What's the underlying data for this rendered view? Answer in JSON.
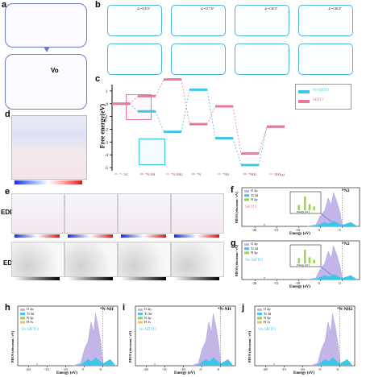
{
  "panels": {
    "a": "a",
    "b": "b",
    "c": "c",
    "d": "d",
    "e": "e",
    "f": "f",
    "g": "g",
    "h": "h",
    "i": "i",
    "j": "j"
  },
  "panel_a": {
    "vacancy_label": "Vo"
  },
  "panel_b": {
    "angle_labels": [
      "∠=116.5°",
      "∠=117.6°",
      "∠=136.5°",
      "∠=140.4°"
    ]
  },
  "panel_c": {
    "ylabel": "Free energy(eV)",
    "legend": [
      {
        "name": "Vo-SBTO",
        "color": "#3ec6e8"
      },
      {
        "name": "SBTO",
        "color": "#e9779e"
      }
    ],
    "steps": [
      "* - N2",
      "*N-NH",
      "*N-NH2",
      "*N",
      "*NH",
      "*NH2",
      "NH3(g)"
    ],
    "y_ticks": [
      "1",
      "0",
      "-1",
      "-2",
      "-3",
      "-4",
      "-5"
    ]
  },
  "panel_e": {
    "row_labels": [
      "EDD",
      "ED"
    ]
  },
  "pdos_common": {
    "ylabel": "PDOS (electrons / eV)",
    "xlabel": "Energy (eV)",
    "x_ticks": [
      "-20",
      "-15",
      "-10",
      "-5",
      "0"
    ],
    "colors": {
      "O2p": "#c4b5e8",
      "Ti3d": "#3ec6e8",
      "N2p": "#9ad04a",
      "H1s": "#f2c060"
    }
  },
  "panel_f": {
    "adsorbate": "*N2",
    "sample": "SBTO",
    "sample_color": "#e9779e",
    "legend": [
      "O 2p",
      "Ti 3d",
      "N 2p"
    ],
    "inset_xlabel": "Energy (eV)"
  },
  "panel_g": {
    "adsorbate": "*N2",
    "sample": "Vo-SBTO",
    "sample_color": "#3ec6e8",
    "legend": [
      "O 2p",
      "Ti 3d",
      "N 2p"
    ],
    "inset_xlabel": "Energy (eV)"
  },
  "panel_h": {
    "adsorbate": "*N-NH",
    "sample": "Vo-SBTO",
    "sample_color": "#3ec6e8",
    "legend": [
      "O 2p",
      "Ti 3d",
      "N 2p",
      "H 1s"
    ]
  },
  "panel_i": {
    "adsorbate": "*N-NH",
    "sample": "Vo-SBTO",
    "sample_color": "#3ec6e8",
    "legend": [
      "O 2p",
      "Ti 3d",
      "N 2p",
      "H 1s"
    ]
  },
  "panel_j": {
    "adsorbate": "*N-NH2",
    "sample": "Vo-SBTO",
    "sample_color": "#3ec6e8",
    "legend": [
      "O 2p",
      "Ti 3d",
      "N 2p",
      "H 1s"
    ]
  },
  "chart_data": [
    {
      "type": "line",
      "title": "",
      "ylabel": "Free energy(eV)",
      "categories": [
        "* - N2",
        "*N-NH",
        "*N-NH2",
        "*N",
        "*NH",
        "*NH2",
        "NH3(g)"
      ],
      "ylim": [
        -5,
        1.5
      ],
      "series": [
        {
          "name": "Vo-SBTO",
          "values": [
            0,
            -0.6,
            -2.2,
            1.1,
            -2.7,
            -4.8,
            -1.8
          ]
        },
        {
          "name": "SBTO",
          "values": [
            0,
            0.6,
            1.9,
            -1.6,
            -0.2,
            -3.9,
            -1.8
          ]
        }
      ]
    }
  ]
}
